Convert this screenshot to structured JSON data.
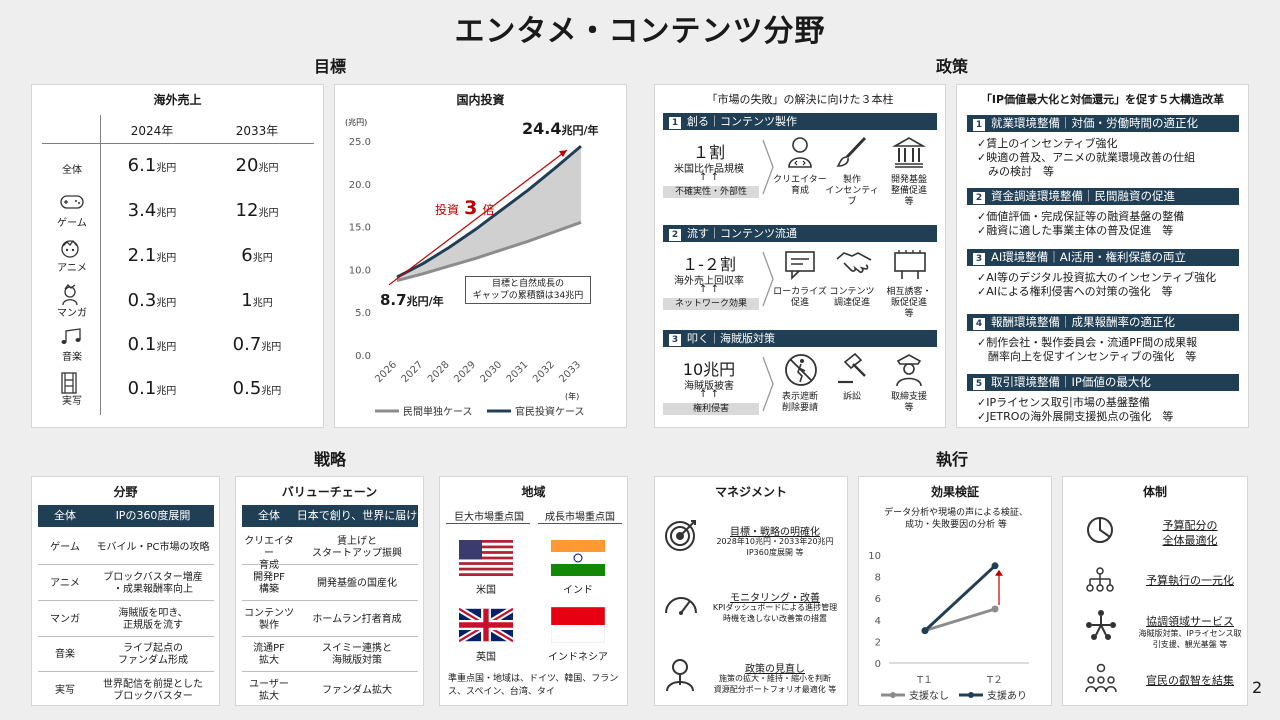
{
  "title": "エンタメ・コンテンツ分野",
  "page_number": "2",
  "sections": {
    "goal": "目標",
    "policy": "政策",
    "strategy": "戦略",
    "execution": "執行"
  },
  "overseas": {
    "title": "海外売上",
    "col2024": "2024年",
    "col2033": "2033年",
    "unit": "兆円",
    "rows": [
      {
        "label": "全体",
        "icon": "",
        "v2024": "6.1",
        "v2033": "20"
      },
      {
        "label": "ゲーム",
        "icon": "gamepad-icon",
        "v2024": "3.4",
        "v2033": "12"
      },
      {
        "label": "アニメ",
        "icon": "anime-face-icon",
        "v2024": "2.1",
        "v2033": "6"
      },
      {
        "label": "マンガ",
        "icon": "manga-character-icon",
        "v2024": "0.3",
        "v2033": "1"
      },
      {
        "label": "音楽",
        "icon": "music-notes-icon",
        "v2024": "0.1",
        "v2033": "0.7"
      },
      {
        "label": "実写",
        "icon": "film-strip-icon",
        "v2024": "0.1",
        "v2033": "0.5"
      }
    ]
  },
  "investment": {
    "title": "国内投資",
    "unit_label": "(兆円)",
    "end_value": "24.4",
    "end_unit": "兆円/年",
    "start_value": "8.7",
    "start_unit": "兆円/年",
    "arrow_label": "投資",
    "arrow_mult": "3",
    "arrow_suffix": "倍",
    "gap_note_line1": "目標と自然成長の",
    "gap_note_line2": "ギャップの累積額は34兆円",
    "xunit": "(年)"
  },
  "chart_data": [
    {
      "type": "line",
      "title": "国内投資",
      "x": [
        "2026",
        "2027",
        "2028",
        "2029",
        "2030",
        "2031",
        "2032",
        "2033"
      ],
      "ylim": [
        0,
        25
      ],
      "yticks": [
        "0.0",
        "5.0",
        "10.0",
        "15.0",
        "20.0",
        "25.0"
      ],
      "series": [
        {
          "name": "民間単独ケース",
          "color": "#8c8c8c",
          "values": [
            8.7,
            9.5,
            10.4,
            11.3,
            12.3,
            13.3,
            14.4,
            15.5
          ]
        },
        {
          "name": "官民投資ケース",
          "color": "#203f55",
          "values": [
            9.1,
            10.7,
            12.6,
            14.7,
            17.0,
            19.3,
            21.8,
            24.4
          ]
        }
      ]
    },
    {
      "type": "line",
      "title": "効果検証",
      "x": [
        "T１",
        "T２"
      ],
      "ylim": [
        0,
        10
      ],
      "yticks": [
        "0",
        "2",
        "4",
        "6",
        "8",
        "10"
      ],
      "series": [
        {
          "name": "支援なし",
          "color": "#8c8c8c",
          "values": [
            3,
            5
          ]
        },
        {
          "name": "支援あり",
          "color": "#203f55",
          "values": [
            3,
            9
          ]
        }
      ]
    }
  ],
  "market_fail": {
    "title": "「市場の失敗」の解決に向けた３本柱",
    "pillars": [
      {
        "no": "1",
        "name": "創る｜コンテンツ製作",
        "big": "１割",
        "desc": "米国比作品規模",
        "arrows": "↑ ↑",
        "tag": "不確実性・外部性",
        "items": [
          {
            "icon": "creator-icon",
            "label": "クリエイター\n育成"
          },
          {
            "icon": "brush-icon",
            "label": "製作\nインセンティブ"
          },
          {
            "icon": "building-icon",
            "label": "開発基盤\n整備促進\n等"
          }
        ]
      },
      {
        "no": "2",
        "name": "流す｜コンテンツ流通",
        "big": "１-２割",
        "desc": "海外売上回収率",
        "arrows": "↑ ↑",
        "tag": "ネットワーク効果",
        "items": [
          {
            "icon": "chat-bubble-icon",
            "label": "ローカライズ\n促進"
          },
          {
            "icon": "handshake-icon",
            "label": "コンテンツ\n調達促進"
          },
          {
            "icon": "billboard-icon",
            "label": "相互誘客・\n販促促進\n等"
          }
        ]
      },
      {
        "no": "3",
        "name": "叩く｜海賊版対策",
        "big": "10兆円",
        "desc": "海賊版被害",
        "arrows": "↑ ↑",
        "tag": "権利侵害",
        "items": [
          {
            "icon": "no-walking-icon",
            "label": "表示遮断\n削除要請"
          },
          {
            "icon": "gavel-icon",
            "label": "訴訟"
          },
          {
            "icon": "police-icon",
            "label": "取締支援\n等"
          }
        ]
      }
    ]
  },
  "reform": {
    "title": "「IP価値最大化と対価還元」を促す５大構造改革",
    "items": [
      {
        "no": "1",
        "name": "就業環境整備｜対価・労働時間の適正化",
        "points": [
          "✓賃上のインセンティブ強化",
          "✓映適の普及、アニメの就業環境改善の仕組",
          "　みの検討　等"
        ]
      },
      {
        "no": "2",
        "name": "資金調達環境整備｜民間融資の促進",
        "points": [
          "✓価値評価・完成保証等の融資基盤の整備",
          "✓融資に適した事業主体の普及促進　等"
        ]
      },
      {
        "no": "3",
        "name": "AI環境整備｜AI活用・権利保護の両立",
        "points": [
          "✓AI等のデジタル投資拡大のインセンティブ強化",
          "✓AIによる権利侵害への対策の強化　等"
        ]
      },
      {
        "no": "4",
        "name": "報酬環境整備｜成果報酬率の適正化",
        "points": [
          "✓制作会社・製作委員会・流通PF間の成果報",
          "　酬率向上を促すインセンティブの強化　等"
        ]
      },
      {
        "no": "5",
        "name": "取引環境整備｜IP価値の最大化",
        "points": [
          "✓IPライセンス取引市場の基盤整備",
          "✓JETROの海外展開支援拠点の強化　等"
        ]
      }
    ]
  },
  "field": {
    "title": "分野",
    "header": [
      "全体",
      "IPの360度展開"
    ],
    "rows": [
      [
        "ゲーム",
        "モバイル・PC市場の攻略"
      ],
      [
        "アニメ",
        "ブロックバスター増産\n・成果報酬率向上"
      ],
      [
        "マンガ",
        "海賊版を叩き、\n正規版を流す"
      ],
      [
        "音楽",
        "ライブ起点の\nファンダム形成"
      ],
      [
        "実写",
        "世界配信を前提とした\nブロックバスター"
      ]
    ]
  },
  "value_chain": {
    "title": "バリューチェーン",
    "header": [
      "全体",
      "日本で創り、世界に届ける"
    ],
    "rows": [
      [
        "クリエイター\n育成",
        "賃上げと\nスタートアップ振興"
      ],
      [
        "開発PF\n構築",
        "開発基盤の国産化"
      ],
      [
        "コンテンツ\n製作",
        "ホームラン打者育成"
      ],
      [
        "流通PF\n拡大",
        "スイミー連携と\n海賊版対策"
      ],
      [
        "ユーザー\n拡大",
        "ファンダム拡大"
      ]
    ]
  },
  "region": {
    "title": "地域",
    "col1": "巨大市場重点国",
    "col2": "成長市場重点国",
    "flags": [
      {
        "icon": "us-flag-icon",
        "label": "米国"
      },
      {
        "icon": "india-flag-icon",
        "label": "インド"
      },
      {
        "icon": "uk-flag-icon",
        "label": "英国"
      },
      {
        "icon": "indonesia-flag-icon",
        "label": "インドネシア"
      }
    ],
    "note": "準重点国・地域は、ドイツ、韓国、フランス、スペイン、台湾、タイ"
  },
  "management": {
    "title": "マネジメント",
    "items": [
      {
        "icon": "target-icon",
        "head": "目標・戦略の明確化",
        "sub": [
          "2028年10兆円・2033年20兆円",
          "IP360度展開 等"
        ]
      },
      {
        "icon": "gauge-icon",
        "head": "モニタリング・改善",
        "sub": [
          "KPIダッシュボードによる進捗管理",
          "時機を逸しない改善策の措置"
        ]
      },
      {
        "icon": "person-icon",
        "head": "政策の見直し",
        "sub": [
          "施策の拡大・維持・縮小を判断",
          "資源配分ポートフォリオ最適化 等"
        ]
      }
    ]
  },
  "effect": {
    "title": "効果検証",
    "desc1": "データ分析や現場の声による検証、",
    "desc2": "成功・失敗要因の分析 等"
  },
  "system": {
    "title": "体制",
    "items": [
      {
        "icon": "pie-chart-icon",
        "head": "予算配分の\n全体最適化",
        "sub": ""
      },
      {
        "icon": "org-tree-icon",
        "head": "予算執行の一元化",
        "sub": ""
      },
      {
        "icon": "collaboration-icon",
        "head": "協調領域サービス",
        "sub": "海賊版対策、IPライセンス取\n引支援、観光基盤 等"
      },
      {
        "icon": "people-idea-icon",
        "head": "官民の叡智を結集",
        "sub": ""
      }
    ]
  }
}
